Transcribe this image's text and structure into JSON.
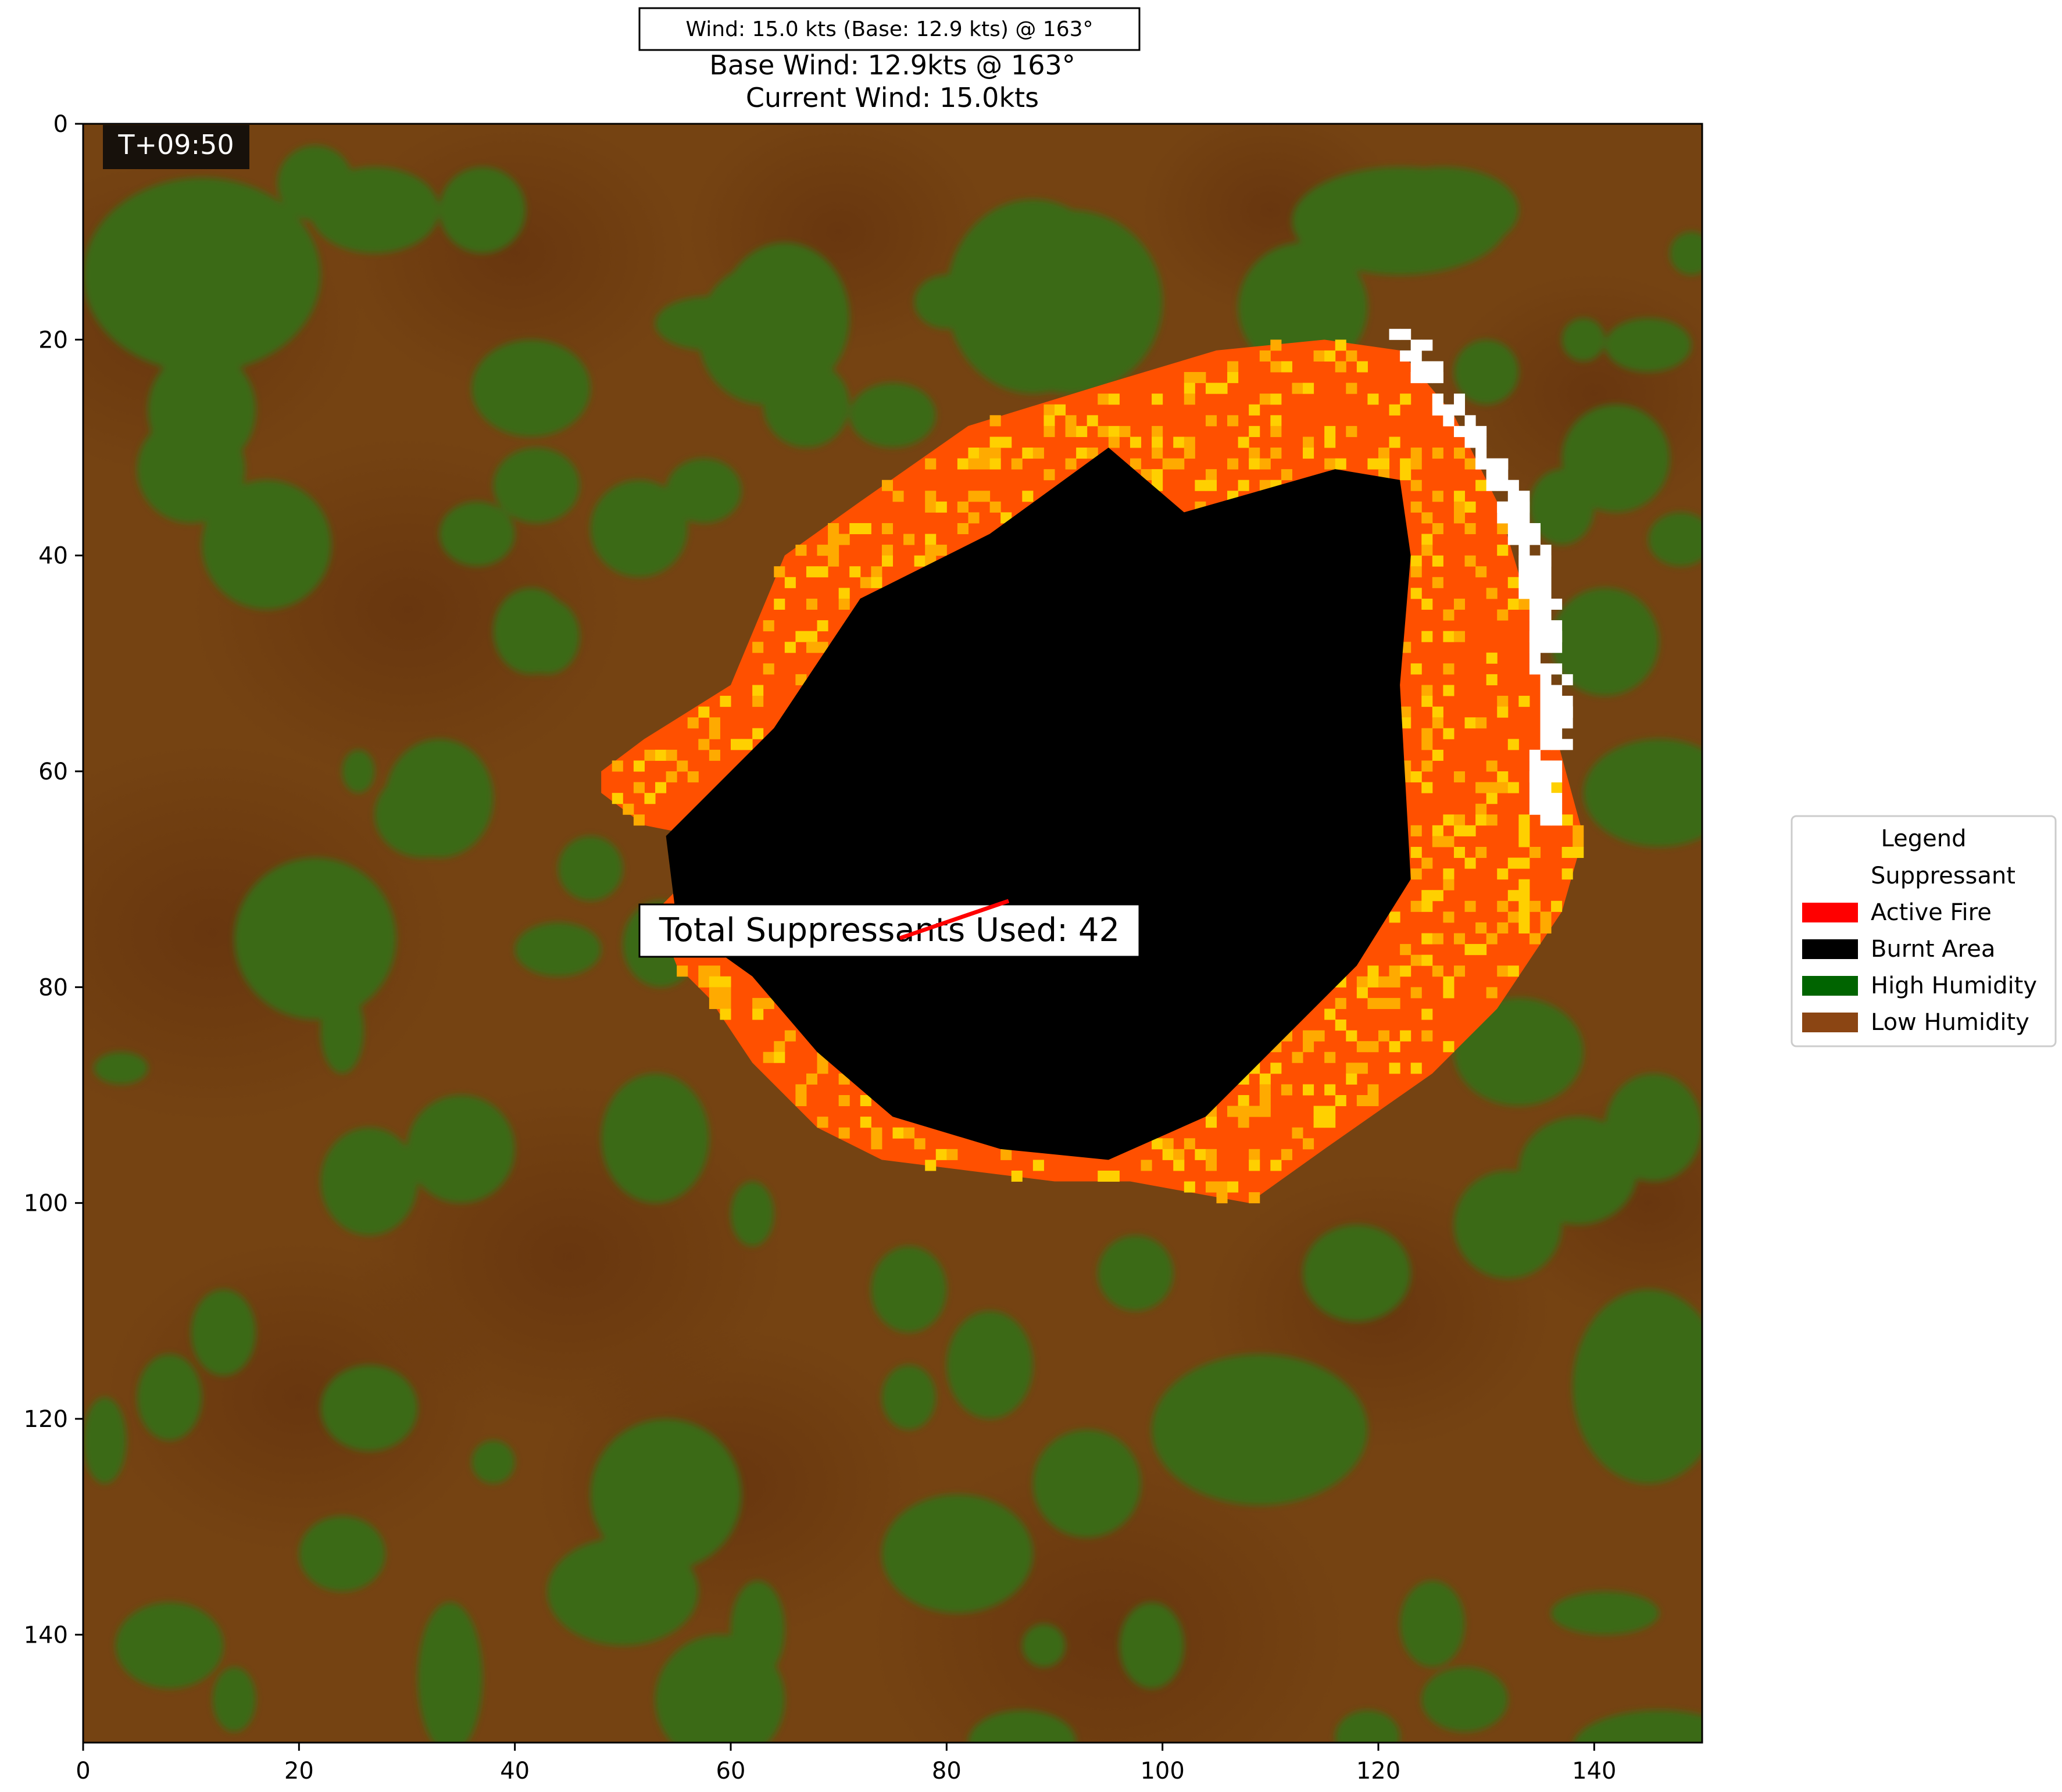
{
  "wind_box": "Wind: 15.0 kts (Base: 12.9 kts)  @ 163°",
  "title_line1": "Base Wind: 12.9kts @ 163°",
  "title_line2": "Current Wind: 15.0kts",
  "timestamp": "T+09:50",
  "annotation": "Total Suppressants Used: 42",
  "colors": {
    "low_humidity": "#754312",
    "low_humidity_dark": "#6e3a10",
    "high_humidity": "#3a6b14",
    "burnt": "#000000",
    "fire": "#ff5000",
    "fire_hot": "#ffaa00",
    "suppressant": "#ffffff",
    "wind_arrow": "#ff0000"
  },
  "chart_data": {
    "type": "heatmap",
    "grid_size": [
      150,
      150
    ],
    "xlim": [
      0,
      150
    ],
    "ylim": [
      150,
      0
    ],
    "x_ticks": [
      "0",
      "20",
      "40",
      "60",
      "80",
      "100",
      "120",
      "140"
    ],
    "y_ticks": [
      "0",
      "20",
      "40",
      "60",
      "80",
      "100",
      "120",
      "140"
    ],
    "x_tick_values": [
      0,
      20,
      40,
      60,
      80,
      100,
      120,
      140
    ],
    "y_tick_values": [
      0,
      20,
      40,
      60,
      80,
      100,
      120,
      140
    ],
    "wind": {
      "base_kts": 12.9,
      "current_kts": 15.0,
      "direction_deg": 163
    },
    "suppressants_used": 42,
    "burnt_region": [
      [
        54,
        66
      ],
      [
        60,
        60
      ],
      [
        64,
        56
      ],
      [
        72,
        44
      ],
      [
        84,
        38
      ],
      [
        95,
        30
      ],
      [
        102,
        36
      ],
      [
        116,
        32
      ],
      [
        122,
        33
      ],
      [
        123,
        40
      ],
      [
        122,
        52
      ],
      [
        123,
        70
      ],
      [
        118,
        78
      ],
      [
        112,
        84
      ],
      [
        104,
        92
      ],
      [
        95,
        96
      ],
      [
        85,
        95
      ],
      [
        75,
        92
      ],
      [
        68,
        86
      ],
      [
        62,
        79
      ],
      [
        55,
        74
      ]
    ],
    "fire_outer": [
      [
        48,
        60
      ],
      [
        52,
        57
      ],
      [
        60,
        52
      ],
      [
        65,
        40
      ],
      [
        72,
        35
      ],
      [
        82,
        28
      ],
      [
        95,
        24
      ],
      [
        105,
        21
      ],
      [
        115,
        20
      ],
      [
        122,
        21
      ],
      [
        127,
        27
      ],
      [
        131,
        35
      ],
      [
        134,
        45
      ],
      [
        136,
        55
      ],
      [
        139,
        66
      ],
      [
        137,
        73
      ],
      [
        131,
        82
      ],
      [
        125,
        88
      ],
      [
        115,
        95
      ],
      [
        108,
        100
      ],
      [
        97,
        98
      ],
      [
        90,
        98
      ],
      [
        82,
        97
      ],
      [
        74,
        96
      ],
      [
        68,
        93
      ],
      [
        62,
        87
      ],
      [
        58,
        81
      ],
      [
        55,
        78
      ],
      [
        53,
        73
      ],
      [
        56,
        70
      ],
      [
        57,
        66
      ],
      [
        52,
        65
      ],
      [
        48,
        62
      ]
    ],
    "suppressant_line": [
      [
        122,
        19
      ],
      [
        124,
        23
      ],
      [
        127,
        27
      ],
      [
        130,
        31
      ],
      [
        132,
        35
      ],
      [
        134,
        40
      ],
      [
        135,
        47
      ],
      [
        136,
        54
      ],
      [
        135,
        60
      ],
      [
        135,
        64
      ]
    ],
    "high_humidity_patches": [
      [
        0,
        5,
        22,
        18
      ],
      [
        5,
        27,
        10,
        10
      ],
      [
        18,
        2,
        7,
        7
      ],
      [
        21,
        4,
        12,
        8
      ],
      [
        33,
        4,
        8,
        8
      ],
      [
        47,
        33,
        9,
        9
      ],
      [
        53,
        16,
        10,
        5
      ],
      [
        36,
        20,
        11,
        9
      ],
      [
        38,
        30,
        8,
        7
      ],
      [
        38,
        43,
        7,
        8
      ],
      [
        57,
        13,
        12,
        13
      ],
      [
        59,
        11,
        12,
        14
      ],
      [
        63,
        22,
        8,
        8
      ],
      [
        71,
        24,
        8,
        6
      ],
      [
        54,
        31,
        7,
        6
      ],
      [
        44,
        66,
        6,
        6
      ],
      [
        80,
        7,
        16,
        18
      ],
      [
        83,
        8,
        17,
        17
      ],
      [
        77,
        14,
        6,
        5
      ],
      [
        108,
        23,
        10,
        9
      ],
      [
        107,
        11,
        12,
        12
      ],
      [
        119,
        4,
        14,
        8
      ],
      [
        112,
        4,
        20,
        10
      ],
      [
        127,
        20,
        6,
        6
      ],
      [
        134,
        32,
        6,
        7
      ],
      [
        137,
        18,
        4,
        4
      ],
      [
        141,
        18,
        8,
        5
      ],
      [
        145,
        36,
        6,
        5
      ],
      [
        147,
        10,
        4,
        4
      ],
      [
        137,
        26,
        10,
        10
      ],
      [
        6,
        21,
        10,
        11
      ],
      [
        11,
        33,
        12,
        12
      ],
      [
        33,
        35,
        7,
        6
      ],
      [
        40,
        44,
        6,
        7
      ],
      [
        28,
        57,
        10,
        11
      ],
      [
        27,
        60,
        9,
        8
      ],
      [
        14,
        68,
        15,
        15
      ],
      [
        22,
        80,
        4,
        8
      ],
      [
        24,
        58,
        3,
        4
      ],
      [
        40,
        74,
        8,
        5
      ],
      [
        50,
        72,
        7,
        8
      ],
      [
        48,
        88,
        10,
        12
      ],
      [
        30,
        90,
        10,
        10
      ],
      [
        22,
        93,
        9,
        10
      ],
      [
        1,
        86,
        5,
        3
      ],
      [
        10,
        108,
        6,
        8
      ],
      [
        5,
        114,
        6,
        8
      ],
      [
        22,
        115,
        9,
        8
      ],
      [
        36,
        122,
        4,
        4
      ],
      [
        60,
        98,
        4,
        6
      ],
      [
        73,
        104,
        7,
        8
      ],
      [
        80,
        110,
        8,
        10
      ],
      [
        74,
        115,
        5,
        6
      ],
      [
        88,
        121,
        10,
        10
      ],
      [
        94,
        103,
        7,
        7
      ],
      [
        99,
        114,
        20,
        14
      ],
      [
        113,
        102,
        10,
        9
      ],
      [
        127,
        97,
        10,
        10
      ],
      [
        138,
        108,
        14,
        18
      ],
      [
        133,
        92,
        11,
        10
      ],
      [
        141,
        88,
        9,
        10
      ],
      [
        139,
        57,
        14,
        10
      ],
      [
        136,
        43,
        10,
        10
      ],
      [
        127,
        81,
        12,
        10
      ],
      [
        112,
        118,
        6,
        8
      ],
      [
        122,
        135,
        6,
        8
      ],
      [
        136,
        136,
        10,
        4
      ],
      [
        124,
        143,
        8,
        6
      ],
      [
        138,
        147,
        16,
        7
      ],
      [
        20,
        129,
        8,
        7
      ],
      [
        31,
        137,
        6,
        14
      ],
      [
        43,
        131,
        14,
        10
      ],
      [
        60,
        135,
        5,
        9
      ],
      [
        47,
        120,
        14,
        14
      ],
      [
        53,
        140,
        12,
        12
      ],
      [
        96,
        137,
        6,
        8
      ],
      [
        82,
        147,
        10,
        6
      ],
      [
        116,
        147,
        6,
        5
      ],
      [
        74,
        127,
        14,
        11
      ],
      [
        87,
        139,
        4,
        4
      ],
      [
        3,
        137,
        10,
        8
      ],
      [
        12,
        143,
        4,
        6
      ],
      [
        0,
        118,
        4,
        8
      ]
    ]
  }
}
